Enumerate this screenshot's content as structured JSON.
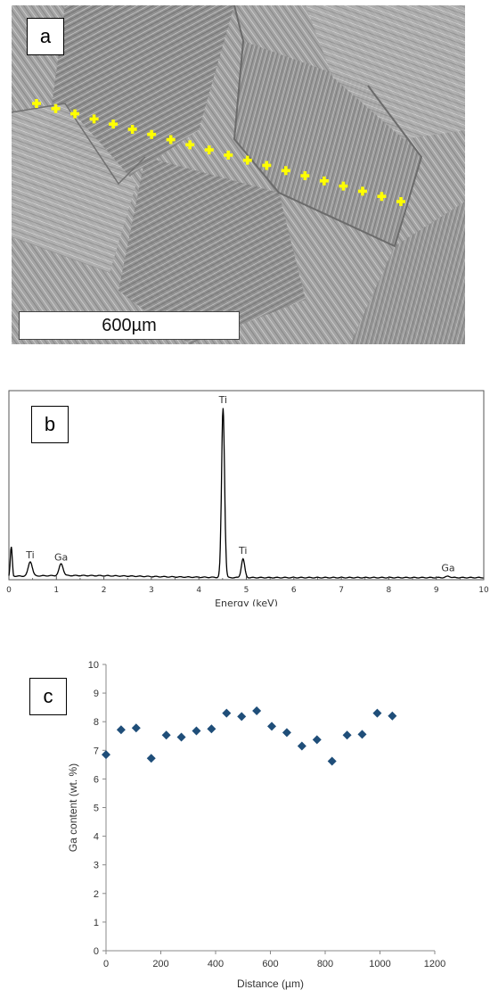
{
  "panels": {
    "a": {
      "label": "a",
      "scale_bar": "600µm",
      "marker_count": 20,
      "marker_color": "#ffff00"
    },
    "b": {
      "label": "b"
    },
    "c": {
      "label": "c"
    }
  },
  "chart_data": [
    {
      "type": "line",
      "panel": "b",
      "title": "",
      "xlabel": "Energy (keV)",
      "ylabel": "",
      "xlim": [
        0,
        10
      ],
      "x_ticks": [
        0,
        1,
        2,
        3,
        4,
        5,
        6,
        7,
        8,
        9,
        10
      ],
      "line_color": "#000000",
      "peaks": [
        {
          "label": "",
          "x": 0.05,
          "height": 0.18
        },
        {
          "label": "Ti",
          "x": 0.45,
          "height": 0.085
        },
        {
          "label": "Ga",
          "x": 1.1,
          "height": 0.07
        },
        {
          "label": "Ti",
          "x": 4.51,
          "height": 1.0
        },
        {
          "label": "Ti",
          "x": 4.93,
          "height": 0.11
        },
        {
          "label": "Ga",
          "x": 9.25,
          "height": 0.008
        }
      ]
    },
    {
      "type": "scatter",
      "panel": "c",
      "title": "",
      "xlabel": "Distance (µm)",
      "ylabel": "Ga content (wt. %)",
      "xlim": [
        0,
        1200
      ],
      "ylim": [
        0,
        10
      ],
      "x_ticks": [
        0,
        200,
        400,
        600,
        800,
        1000,
        1200
      ],
      "y_ticks": [
        0,
        1,
        2,
        3,
        4,
        5,
        6,
        7,
        8,
        9,
        10
      ],
      "marker_color": "#1f4e79",
      "series": [
        {
          "x": [
            0,
            55,
            110,
            165,
            220,
            275,
            330,
            385,
            440,
            495,
            550,
            605,
            660,
            715,
            770,
            825,
            880,
            935,
            990,
            1045
          ],
          "y": [
            6.85,
            7.72,
            7.78,
            6.72,
            7.53,
            7.46,
            7.68,
            7.75,
            8.3,
            8.18,
            8.38,
            7.84,
            7.62,
            7.15,
            7.37,
            6.62,
            7.53,
            7.56,
            8.3,
            8.2
          ]
        }
      ]
    }
  ]
}
